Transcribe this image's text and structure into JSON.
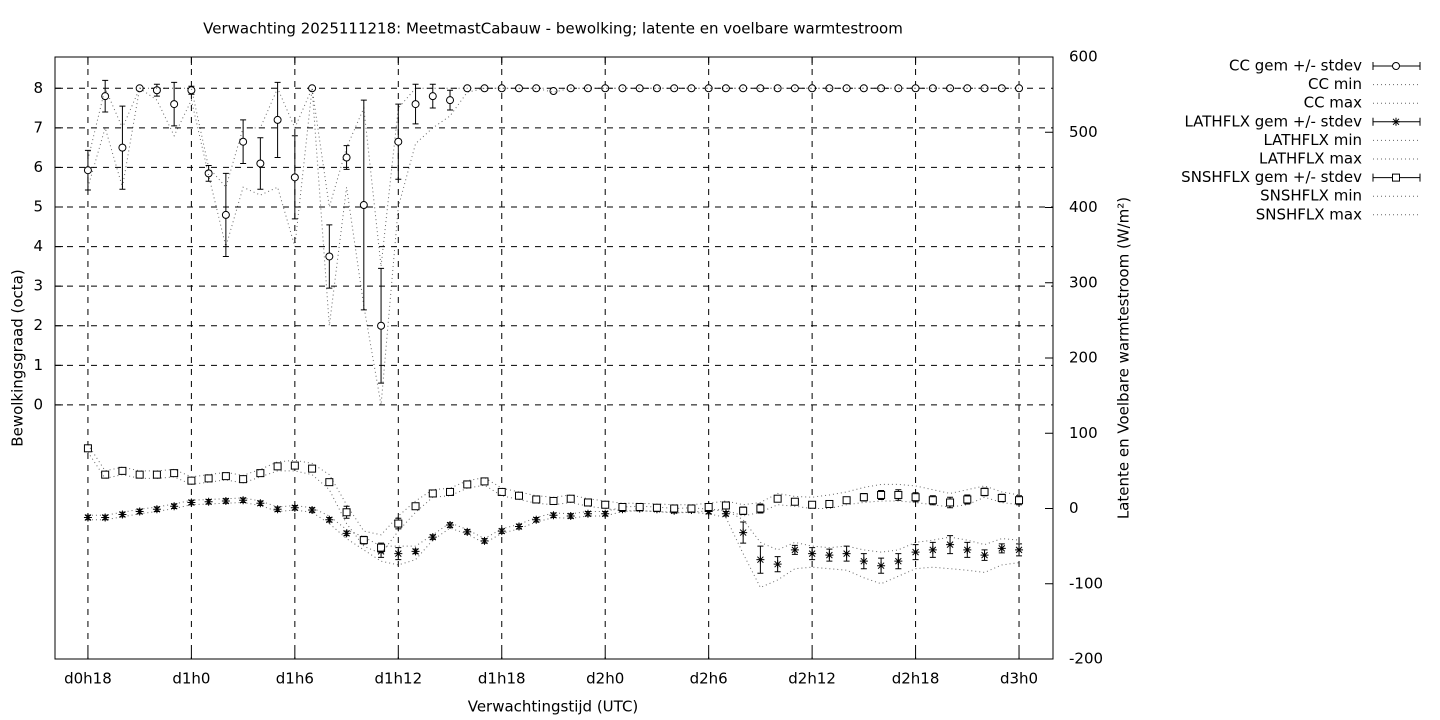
{
  "chart_data": {
    "type": "errorbar-line",
    "title": "Verwachting 2025111218: MeetmastCabauw - bewolking; latente en voelbare warmtestroom",
    "xlabel": "Verwachtingstijd (UTC)",
    "ylabel": "Bewolkingsgraad (octa)",
    "y2label": "Latente en Voelbare warmtestroom (W/m²)",
    "grid": true,
    "legend": "outside-right",
    "xlim": [
      16.09,
      73.97
    ],
    "ylim": [
      -6.42,
      8.79
    ],
    "y2lim": [
      -200,
      600
    ],
    "xticks": [
      {
        "value": 18,
        "label": "d0h18"
      },
      {
        "value": 24,
        "label": "d1h0"
      },
      {
        "value": 30,
        "label": "d1h6"
      },
      {
        "value": 36,
        "label": "d1h12"
      },
      {
        "value": 42,
        "label": "d1h18"
      },
      {
        "value": 48,
        "label": "d2h0"
      },
      {
        "value": 54,
        "label": "d2h6"
      },
      {
        "value": 60,
        "label": "d2h12"
      },
      {
        "value": 66,
        "label": "d2h18"
      },
      {
        "value": 72,
        "label": "d3h0"
      }
    ],
    "yticks": [
      0,
      1,
      2,
      3,
      4,
      5,
      6,
      7,
      8
    ],
    "y2ticks": [
      -200,
      -100,
      0,
      100,
      200,
      300,
      400,
      500,
      600
    ],
    "x": [
      18,
      19,
      20,
      21,
      22,
      23,
      24,
      25,
      26,
      27,
      28,
      29,
      30,
      31,
      32,
      33,
      34,
      35,
      36,
      37,
      38,
      39,
      40,
      41,
      42,
      43,
      44,
      45,
      46,
      47,
      48,
      49,
      50,
      51,
      52,
      53,
      54,
      55,
      56,
      57,
      58,
      59,
      60,
      61,
      62,
      63,
      64,
      65,
      66,
      67,
      68,
      69,
      70,
      71,
      72
    ],
    "series": [
      {
        "name": "CC gem +/- stdev",
        "style": "errorbars",
        "marker": "circle",
        "color": "#000000",
        "axis": "y",
        "values": [
          5.93,
          7.8,
          6.5,
          8,
          7.95,
          7.6,
          7.95,
          5.85,
          4.8,
          6.65,
          6.1,
          7.2,
          5.75,
          8,
          3.75,
          6.25,
          5.05,
          2,
          6.65,
          7.6,
          7.8,
          7.7,
          8,
          8,
          8,
          8,
          8,
          7.93,
          8,
          8,
          8,
          8,
          8,
          8,
          8,
          8,
          8,
          8,
          8,
          8,
          8,
          8,
          8,
          8,
          8,
          8,
          8,
          8,
          8,
          8,
          8,
          8,
          8,
          8,
          8
        ],
        "errors": [
          0.5,
          0.4,
          1.05,
          0,
          0.15,
          0.55,
          0.1,
          0.2,
          1.05,
          0.55,
          0.65,
          0.95,
          1.05,
          0,
          0.8,
          0.3,
          2.65,
          1.45,
          0.95,
          0.5,
          0.3,
          0.25,
          0.05,
          0,
          0,
          0,
          0,
          0,
          0,
          0,
          0,
          0,
          0,
          0,
          0,
          0,
          0,
          0,
          0,
          0,
          0,
          0,
          0,
          0,
          0,
          0,
          0,
          0,
          0,
          0,
          0,
          0,
          0,
          0,
          0
        ]
      },
      {
        "name": "CC min",
        "style": "line",
        "color": "#000000",
        "axis": "y",
        "values": [
          5.5,
          7,
          5.5,
          8,
          7.7,
          6.8,
          7.7,
          5.8,
          4,
          5.5,
          5.3,
          5.5,
          4,
          8,
          2,
          5.5,
          2.5,
          0,
          5,
          6.6,
          7,
          7.3,
          7.9,
          8,
          8,
          8,
          8,
          7.9,
          8,
          8,
          8,
          8,
          8,
          8,
          8,
          8,
          8,
          8,
          8,
          8,
          8,
          8,
          8,
          8,
          8,
          8,
          8,
          8,
          8,
          8,
          8,
          8,
          8,
          8,
          8
        ]
      },
      {
        "name": "CC max",
        "style": "line",
        "color": "#000000",
        "axis": "y",
        "values": [
          6.2,
          8,
          7,
          8,
          8,
          8,
          8,
          6,
          5.5,
          7,
          7,
          8,
          7,
          8,
          5,
          6.5,
          7.5,
          3.5,
          7.5,
          8,
          8,
          8,
          8,
          8,
          8,
          8,
          8,
          8,
          8,
          8,
          8,
          8,
          8,
          8,
          8,
          8,
          8,
          8,
          8,
          8,
          8,
          8,
          8,
          8,
          8,
          8,
          8,
          8,
          8,
          8,
          8,
          8,
          8,
          8,
          8
        ]
      },
      {
        "name": "LATHFLX gem +/- stdev",
        "style": "errorbars",
        "marker": "star",
        "color": "#000000",
        "axis": "y2",
        "values": [
          -12,
          -12,
          -8,
          -4,
          -1,
          3,
          8,
          9,
          10,
          11,
          7,
          -1,
          1,
          -2,
          -15,
          -33,
          -43,
          -57,
          -60,
          -57,
          -38,
          -22,
          -31,
          -43,
          -30,
          -24,
          -15,
          -9,
          -10,
          -7,
          -7,
          -1,
          0,
          -1,
          -3,
          -2,
          -4,
          -7,
          -32,
          -68,
          -74,
          -55,
          -60,
          -62,
          -60,
          -70,
          -76,
          -70,
          -58,
          -55,
          -48,
          -55,
          -62,
          -53,
          -55
        ],
        "errors": [
          3,
          3,
          3,
          3,
          3,
          3,
          3,
          3,
          3,
          3,
          3,
          3,
          3,
          3,
          3,
          3,
          3,
          8,
          8,
          3,
          3,
          3,
          3,
          3,
          3,
          3,
          3,
          3,
          3,
          3,
          3,
          3,
          3,
          3,
          3,
          3,
          3,
          3,
          14,
          18,
          10,
          6,
          8,
          8,
          10,
          10,
          10,
          10,
          10,
          10,
          12,
          10,
          7,
          6,
          8
        ]
      },
      {
        "name": "LATHFLX min",
        "style": "line",
        "color": "#000000",
        "axis": "y2",
        "values": [
          -15,
          -15,
          -11,
          -7,
          -4,
          0,
          5,
          6,
          7,
          8,
          4,
          -4,
          -2,
          -5,
          -20,
          -40,
          -55,
          -70,
          -75,
          -68,
          -42,
          -26,
          -34,
          -46,
          -33,
          -27,
          -18,
          -12,
          -13,
          -10,
          -10,
          -4,
          -3,
          -4,
          -6,
          -5,
          -7,
          -12,
          -60,
          -105,
          -95,
          -80,
          -78,
          -80,
          -82,
          -92,
          -100,
          -90,
          -80,
          -78,
          -80,
          -82,
          -85,
          -75,
          -72
        ]
      },
      {
        "name": "LATHFLX max",
        "style": "line",
        "color": "#000000",
        "axis": "y2",
        "values": [
          -9,
          -9,
          -5,
          -1,
          2,
          6,
          11,
          12,
          13,
          14,
          10,
          2,
          4,
          1,
          -10,
          -28,
          -38,
          -50,
          -50,
          -50,
          -35,
          -19,
          -28,
          -40,
          -27,
          -21,
          -12,
          -6,
          -7,
          -4,
          -4,
          2,
          3,
          2,
          0,
          1,
          -1,
          -2,
          -15,
          -45,
          -55,
          -45,
          -50,
          -52,
          -50,
          -55,
          -58,
          -55,
          -45,
          -42,
          -38,
          -42,
          -48,
          -40,
          -42
        ]
      },
      {
        "name": "SNSHFLX gem +/- stdev",
        "style": "errorbars",
        "marker": "square",
        "color": "#000000",
        "axis": "y2",
        "values": [
          80,
          45,
          50,
          45,
          45,
          47,
          37,
          40,
          43,
          39,
          47,
          56,
          57,
          53,
          35,
          -5,
          -42,
          -52,
          -20,
          3,
          20,
          22,
          32,
          36,
          22,
          17,
          12,
          10,
          13,
          8,
          5,
          2,
          2,
          1,
          0,
          0,
          2,
          4,
          -3,
          0,
          13,
          9,
          5,
          6,
          11,
          15,
          18,
          18,
          15,
          11,
          8,
          12,
          22,
          14,
          11
        ],
        "errors": [
          2,
          3,
          3,
          3,
          3,
          3,
          3,
          3,
          3,
          3,
          3,
          3,
          3,
          3,
          3,
          8,
          5,
          6,
          7,
          4,
          4,
          4,
          4,
          4,
          4,
          4,
          4,
          4,
          4,
          4,
          4,
          4,
          4,
          4,
          4,
          4,
          4,
          4,
          5,
          6,
          3,
          3,
          4,
          4,
          4,
          5,
          6,
          7,
          6,
          6,
          7,
          6,
          5,
          5,
          6
        ]
      },
      {
        "name": "SNSHFLX min",
        "style": "line",
        "color": "#000000",
        "axis": "y2",
        "values": [
          75,
          40,
          45,
          40,
          40,
          42,
          32,
          35,
          38,
          34,
          42,
          50,
          50,
          45,
          25,
          -20,
          -50,
          -60,
          -30,
          -5,
          15,
          17,
          27,
          31,
          17,
          12,
          7,
          5,
          8,
          3,
          0,
          -3,
          -3,
          -4,
          -5,
          -5,
          -3,
          -2,
          -10,
          -5,
          5,
          3,
          0,
          0,
          5,
          8,
          10,
          10,
          8,
          5,
          2,
          5,
          15,
          8,
          5
        ]
      },
      {
        "name": "SNSHFLX max",
        "style": "line",
        "color": "#000000",
        "axis": "y2",
        "values": [
          85,
          50,
          55,
          50,
          50,
          52,
          42,
          45,
          48,
          44,
          52,
          62,
          64,
          60,
          45,
          5,
          -30,
          -35,
          -10,
          10,
          25,
          27,
          37,
          41,
          27,
          22,
          17,
          15,
          18,
          13,
          10,
          7,
          7,
          6,
          5,
          5,
          7,
          10,
          5,
          8,
          20,
          16,
          15,
          18,
          22,
          28,
          32,
          32,
          30,
          25,
          20,
          25,
          30,
          22,
          18
        ]
      }
    ]
  }
}
